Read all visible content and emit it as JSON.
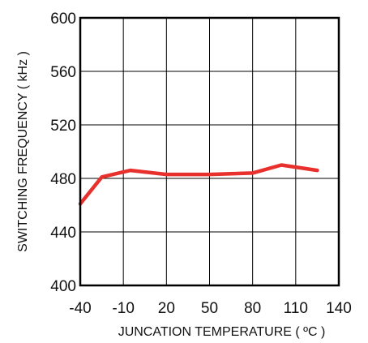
{
  "chart_data": {
    "type": "line",
    "title": "",
    "xlabel": "JUNCATION TEMPERATURE ( ºC )",
    "ylabel": "SWITCHING FREQUENCY ( kHz )",
    "xlim": [
      -40,
      140
    ],
    "ylim": [
      400,
      600
    ],
    "x_ticks": [
      -40,
      -10,
      20,
      50,
      80,
      110,
      140
    ],
    "x_tick_labels": [
      "-40",
      "-10",
      "20",
      "50",
      "80",
      "110",
      "140"
    ],
    "y_ticks": [
      400,
      440,
      480,
      520,
      560,
      600
    ],
    "y_tick_labels": [
      "400",
      "440",
      "480",
      "520",
      "560",
      "600"
    ],
    "grid": true,
    "series": [
      {
        "color": "#e8302c",
        "x": [
          -40,
          -25,
          -5,
          20,
          50,
          80,
          100,
          125
        ],
        "y": [
          461,
          481,
          486,
          483,
          483,
          484,
          490,
          486
        ]
      }
    ]
  }
}
